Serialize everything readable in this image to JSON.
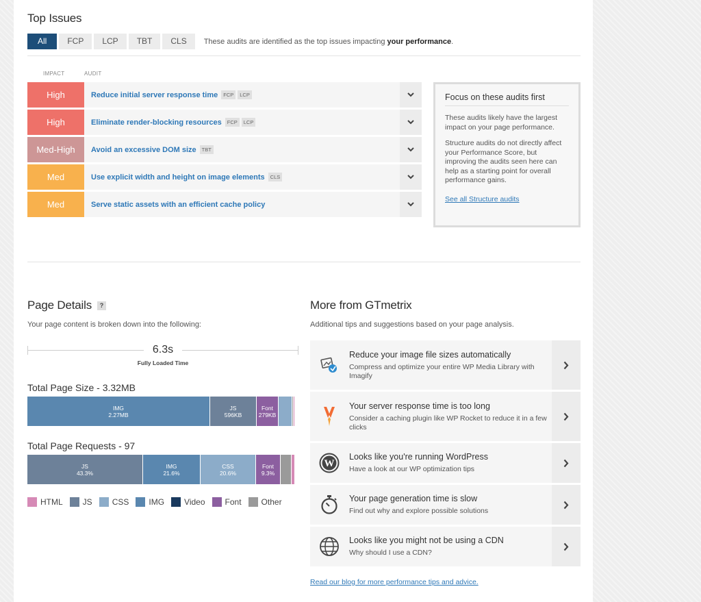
{
  "top_issues": {
    "title": "Top Issues",
    "filters": [
      "All",
      "FCP",
      "LCP",
      "TBT",
      "CLS"
    ],
    "description_prefix": "These audits are identified as the top issues impacting ",
    "description_bold": "your performance",
    "description_suffix": ".",
    "col_impact": "IMPACT",
    "col_audit": "AUDIT",
    "audits": [
      {
        "impact": "High",
        "name": "Reduce initial server response time",
        "tags": [
          "FCP",
          "LCP"
        ]
      },
      {
        "impact": "High",
        "name": "Eliminate render-blocking resources",
        "tags": [
          "FCP",
          "LCP"
        ]
      },
      {
        "impact": "Med-High",
        "name": "Avoid an excessive DOM size",
        "tags": [
          "TBT"
        ]
      },
      {
        "impact": "Med",
        "name": "Use explicit width and height on image elements",
        "tags": [
          "CLS"
        ]
      },
      {
        "impact": "Med",
        "name": "Serve static assets with an efficient cache policy",
        "tags": []
      }
    ],
    "focus": {
      "title": "Focus on these audits first",
      "p1": "These audits likely have the largest impact on your page performance.",
      "p2": "Structure audits do not directly affect your Performance Score, but improving the audits seen here can help as a starting point for overall performance gains.",
      "link": "See all Structure audits"
    }
  },
  "page_details": {
    "title": "Page Details",
    "help": "?",
    "subtitle": "Your page content is broken down into the following:",
    "fully_loaded_value": "6.3s",
    "fully_loaded_label": "Fully Loaded Time",
    "size_title": "Total Page Size - 3.32MB",
    "size_segments": [
      {
        "type": "IMG",
        "value": "2.27MB",
        "share": 0.683
      },
      {
        "type": "JS",
        "value": "596KB",
        "share": 0.175
      },
      {
        "type": "Font",
        "value": "279KB",
        "share": 0.082
      },
      {
        "type": "CSS",
        "value": "",
        "share": 0.05
      },
      {
        "type": "Other",
        "value": "",
        "share": 0.005
      },
      {
        "type": "HTML",
        "value": "",
        "share": 0.005
      }
    ],
    "requests_title": "Total Page Requests - 97",
    "request_segments": [
      {
        "type": "JS",
        "value": "43.3%",
        "share": 0.433
      },
      {
        "type": "IMG",
        "value": "21.6%",
        "share": 0.216
      },
      {
        "type": "CSS",
        "value": "20.6%",
        "share": 0.206
      },
      {
        "type": "Font",
        "value": "9.3%",
        "share": 0.093
      },
      {
        "type": "Other",
        "value": "",
        "share": 0.04
      },
      {
        "type": "HTML",
        "value": "",
        "share": 0.012
      }
    ],
    "legend": [
      "HTML",
      "JS",
      "CSS",
      "IMG",
      "Video",
      "Font",
      "Other"
    ],
    "colors": {
      "HTML": "#d68ab6",
      "JS": "#6d8199",
      "CSS": "#8cacc9",
      "IMG": "#5a87af",
      "Video": "#1a3a5e",
      "Font": "#8c5fa0",
      "Other": "#9a9a9a"
    }
  },
  "more_gtmetrix": {
    "title": "More from GTmetrix",
    "subtitle": "Additional tips and suggestions based on your page analysis.",
    "tips": [
      {
        "icon": "image-optimize-icon",
        "heading": "Reduce your image file sizes automatically",
        "text": "Compress and optimize your entire WP Media Library with Imagify"
      },
      {
        "icon": "wp-rocket-icon",
        "heading": "Your server response time is too long",
        "text": "Consider a caching plugin like WP Rocket to reduce it in a few clicks"
      },
      {
        "icon": "wordpress-icon",
        "heading": "Looks like you're running WordPress",
        "text": "Have a look at our WP optimization tips"
      },
      {
        "icon": "stopwatch-icon",
        "heading": "Your page generation time is slow",
        "text": "Find out why and explore possible solutions"
      },
      {
        "icon": "globe-icon",
        "heading": "Looks like you might not be using a CDN",
        "text": "Why should I use a CDN?"
      }
    ],
    "blog_link": "Read our blog for more performance tips and advice."
  }
}
